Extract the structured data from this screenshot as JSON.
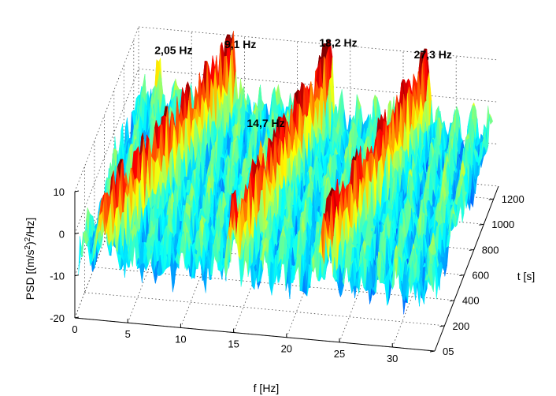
{
  "chart_data": {
    "type": "surface3d",
    "title": "",
    "xlabel": "f [Hz]",
    "ylabel": "t [s]",
    "zlabel_prefix": "PSD [(m/s",
    "zlabel_sup": "2",
    "zlabel_suffix": ")",
    "zlabel_sup2": "2",
    "zlabel_tail": "/Hz]",
    "xlim": [
      0,
      34
    ],
    "ylim": [
      0,
      1300
    ],
    "zlim": [
      -20,
      10
    ],
    "x_ticks": [
      "0",
      "5",
      "10",
      "15",
      "20",
      "25",
      "30"
    ],
    "x_tick_values": [
      0,
      5,
      10,
      15,
      20,
      25,
      30
    ],
    "y_ticks": [
      "05",
      "200",
      "400",
      "600",
      "800",
      "1000",
      "1200"
    ],
    "y_tick_values": [
      0,
      200,
      400,
      600,
      800,
      1000,
      1200
    ],
    "z_ticks": [
      "-20",
      "-10",
      "0",
      "10"
    ],
    "z_tick_values": [
      -20,
      -10,
      0,
      10
    ],
    "grid": true,
    "colormap": "jet",
    "peaks": [
      {
        "label": "2,05 Hz",
        "f": 2.05,
        "t": 1250
      },
      {
        "label": "9,1 Hz",
        "f": 9.1,
        "t": 1250
      },
      {
        "label": "14,7 Hz",
        "f": 14.7,
        "t": 560
      },
      {
        "label": "18,2 Hz",
        "f": 18.2,
        "t": 1250
      },
      {
        "label": "27,3 Hz",
        "f": 27.3,
        "t": 1250
      }
    ],
    "ridges": [
      {
        "f_start": 2.4,
        "f_end": 9.1,
        "level": 9
      },
      {
        "f_start": 14.7,
        "f_end": 18.2,
        "level": 9
      },
      {
        "f_start": 23.3,
        "f_end": 27.3,
        "level": 9
      }
    ],
    "baseline_level": -6
  }
}
